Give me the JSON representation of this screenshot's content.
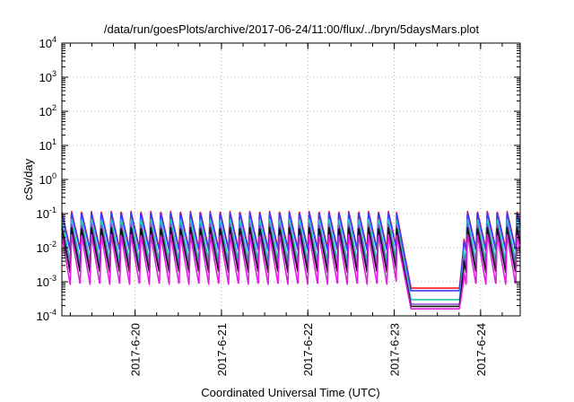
{
  "chart_data": {
    "type": "line",
    "title": "/data/run/goesPlots/archive/2017-06-24/11:00/flux/../bryn/5daysMars.plot",
    "xlabel": "Coordinated Universal Time (UTC)",
    "ylabel": "cSv/day",
    "yscale": "log",
    "ylim": [
      0.0001,
      10000
    ],
    "xlim": [
      "2017-06-19 03:40",
      "2017-06-24 11:00"
    ],
    "x_ticks": [
      "2017-6-20",
      "2017-6-21",
      "2017-6-22",
      "2017-6-23",
      "2017-6-24"
    ],
    "y_ticks": [
      {
        "base": "10",
        "exp": "-4",
        "value": 0.0001
      },
      {
        "base": "10",
        "exp": "-3",
        "value": 0.001
      },
      {
        "base": "10",
        "exp": "-2",
        "value": 0.01
      },
      {
        "base": "10",
        "exp": "-1",
        "value": 0.1
      },
      {
        "base": "10",
        "exp": "0",
        "value": 1
      },
      {
        "base": "10",
        "exp": "1",
        "value": 10
      },
      {
        "base": "10",
        "exp": "2",
        "value": 100
      },
      {
        "base": "10",
        "exp": "3",
        "value": 1000
      },
      {
        "base": "10",
        "exp": "4",
        "value": 10000
      }
    ],
    "grid": true,
    "legend": "none",
    "periodic_pattern": {
      "sawtooth_period_hours": 2.75,
      "peak_day_fraction_phase": 0.15
    },
    "quiet_interval": {
      "start": "2017-06-23 00:40",
      "end": "2017-06-23 19:20"
    },
    "series": [
      {
        "color": "#ff1a1a",
        "peak": 0.12,
        "trough": 0.009,
        "quiet_level": 0.00065
      },
      {
        "color": "#3a3aff",
        "peak": 0.11,
        "trough": 0.008,
        "quiet_level": 0.00055
      },
      {
        "color": "#1ec8b4",
        "peak": 0.07,
        "trough": 0.004,
        "quiet_level": 0.0003
      },
      {
        "color": "#8a4ad8",
        "peak": 0.05,
        "trough": 0.0025,
        "quiet_level": 0.00022
      },
      {
        "color": "#111111",
        "peak": 0.04,
        "trough": 0.0018,
        "quiet_level": 0.00019
      },
      {
        "color": "#e01ee0",
        "peak": 0.025,
        "trough": 0.0008,
        "quiet_level": 0.00016
      }
    ]
  }
}
